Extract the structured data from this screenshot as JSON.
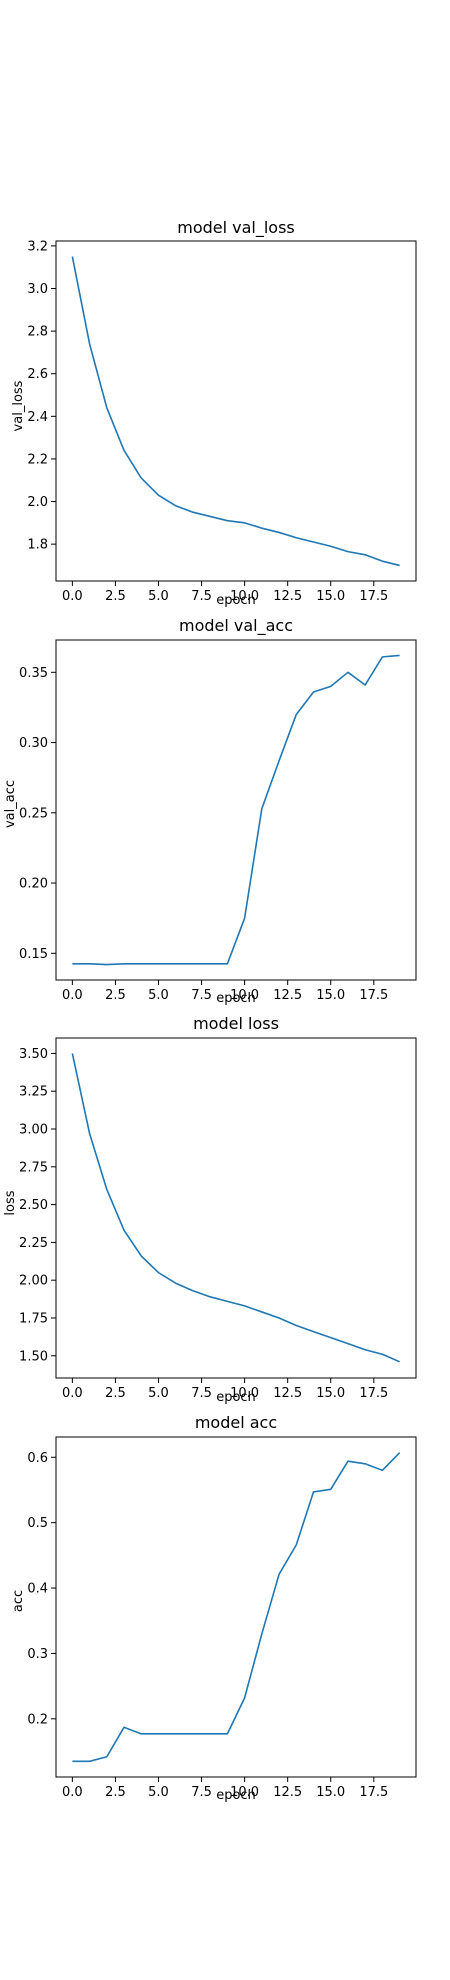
{
  "chart_data": [
    {
      "type": "line",
      "title": "model val_loss",
      "xlabel": "epoch",
      "ylabel": "val_loss",
      "xlim": [
        -0.95,
        19.95
      ],
      "ylim": [
        1.627,
        3.223
      ],
      "xticks": [
        0.0,
        2.5,
        5.0,
        7.5,
        10.0,
        12.5,
        15.0,
        17.5
      ],
      "xtick_labels": [
        "0.0",
        "2.5",
        "5.0",
        "7.5",
        "10.0",
        "12.5",
        "15.0",
        "17.5"
      ],
      "yticks": [
        1.8,
        2.0,
        2.2,
        2.4,
        2.6,
        2.8,
        3.0,
        3.2
      ],
      "ytick_labels": [
        "1.8",
        "2.0",
        "2.2",
        "2.4",
        "2.6",
        "2.8",
        "3.0",
        "3.2"
      ],
      "grid": false,
      "color": "#1f77b4",
      "x": [
        0,
        1,
        2,
        3,
        4,
        5,
        6,
        7,
        8,
        9,
        10,
        11,
        12,
        13,
        14,
        15,
        16,
        17,
        18,
        19
      ],
      "y": [
        3.15,
        2.74,
        2.44,
        2.24,
        2.11,
        2.03,
        1.98,
        1.95,
        1.93,
        1.91,
        1.9,
        1.875,
        1.855,
        1.83,
        1.81,
        1.79,
        1.765,
        1.75,
        1.72,
        1.7
      ]
    },
    {
      "type": "line",
      "title": "model val_acc",
      "xlabel": "epoch",
      "ylabel": "val_acc",
      "xlim": [
        -0.95,
        19.95
      ],
      "ylim": [
        0.131,
        0.373
      ],
      "xticks": [
        0.0,
        2.5,
        5.0,
        7.5,
        10.0,
        12.5,
        15.0,
        17.5
      ],
      "xtick_labels": [
        "0.0",
        "2.5",
        "5.0",
        "7.5",
        "10.0",
        "12.5",
        "15.0",
        "17.5"
      ],
      "yticks": [
        0.15,
        0.2,
        0.25,
        0.3,
        0.35
      ],
      "ytick_labels": [
        "0.15",
        "0.20",
        "0.25",
        "0.30",
        "0.35"
      ],
      "grid": false,
      "color": "#1f77b4",
      "x": [
        0,
        1,
        2,
        3,
        4,
        5,
        6,
        7,
        8,
        9,
        10,
        11,
        12,
        13,
        14,
        15,
        16,
        17,
        18,
        19
      ],
      "y": [
        0.1425,
        0.1425,
        0.142,
        0.1425,
        0.1425,
        0.1425,
        0.1425,
        0.1425,
        0.1425,
        0.1425,
        0.175,
        0.253,
        0.287,
        0.32,
        0.336,
        0.34,
        0.35,
        0.341,
        0.361,
        0.362
      ]
    },
    {
      "type": "line",
      "title": "model loss",
      "xlabel": "epoch",
      "ylabel": "loss",
      "xlim": [
        -0.95,
        19.95
      ],
      "ylim": [
        1.353,
        3.602
      ],
      "xticks": [
        0.0,
        2.5,
        5.0,
        7.5,
        10.0,
        12.5,
        15.0,
        17.5
      ],
      "xtick_labels": [
        "0.0",
        "2.5",
        "5.0",
        "7.5",
        "10.0",
        "12.5",
        "15.0",
        "17.5"
      ],
      "yticks": [
        1.5,
        1.75,
        2.0,
        2.25,
        2.5,
        2.75,
        3.0,
        3.25,
        3.5
      ],
      "ytick_labels": [
        "1.50",
        "1.75",
        "2.00",
        "2.25",
        "2.50",
        "2.75",
        "3.00",
        "3.25",
        "3.50"
      ],
      "grid": false,
      "color": "#1f77b4",
      "x": [
        0,
        1,
        2,
        3,
        4,
        5,
        6,
        7,
        8,
        9,
        10,
        11,
        12,
        13,
        14,
        15,
        16,
        17,
        18,
        19
      ],
      "y": [
        3.5,
        2.97,
        2.6,
        2.33,
        2.16,
        2.05,
        1.98,
        1.93,
        1.89,
        1.86,
        1.83,
        1.79,
        1.75,
        1.7,
        1.66,
        1.62,
        1.58,
        1.54,
        1.51,
        1.46
      ]
    },
    {
      "type": "line",
      "title": "model acc",
      "xlabel": "epoch",
      "ylabel": "acc",
      "xlim": [
        -0.95,
        19.95
      ],
      "ylim": [
        0.111,
        0.631
      ],
      "xticks": [
        0.0,
        2.5,
        5.0,
        7.5,
        10.0,
        12.5,
        15.0,
        17.5
      ],
      "xtick_labels": [
        "0.0",
        "2.5",
        "5.0",
        "7.5",
        "10.0",
        "12.5",
        "15.0",
        "17.5"
      ],
      "yticks": [
        0.2,
        0.3,
        0.4,
        0.5,
        0.6
      ],
      "ytick_labels": [
        "0.2",
        "0.3",
        "0.4",
        "0.5",
        "0.6"
      ],
      "grid": false,
      "color": "#1f77b4",
      "x": [
        0,
        1,
        2,
        3,
        4,
        5,
        6,
        7,
        8,
        9,
        10,
        11,
        12,
        13,
        14,
        15,
        16,
        17,
        18,
        19
      ],
      "y": [
        0.135,
        0.135,
        0.142,
        0.187,
        0.177,
        0.177,
        0.177,
        0.177,
        0.177,
        0.177,
        0.232,
        0.33,
        0.421,
        0.466,
        0.547,
        0.551,
        0.594,
        0.59,
        0.58,
        0.607
      ]
    }
  ]
}
